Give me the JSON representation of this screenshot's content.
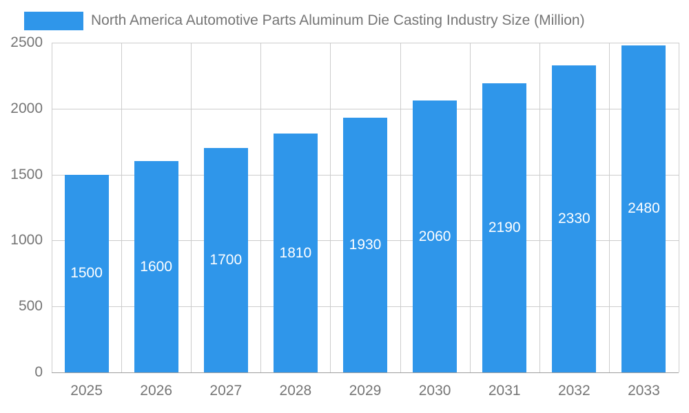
{
  "chart_data": {
    "type": "bar",
    "title": "North America Automotive Parts Aluminum Die Casting Industry Size (Million)",
    "categories": [
      "2025",
      "2026",
      "2027",
      "2028",
      "2029",
      "2030",
      "2031",
      "2032",
      "2033"
    ],
    "values": [
      1500,
      1600,
      1700,
      1810,
      1930,
      2060,
      2190,
      2330,
      2480
    ],
    "xlabel": "",
    "ylabel": "",
    "ylim": [
      0,
      2500
    ],
    "yticks": [
      0,
      500,
      1000,
      1500,
      2000,
      2500
    ],
    "grid": true,
    "legend_position": "top-left",
    "bar_color": "#2F96EA",
    "value_label_color": "#FFFFFF",
    "axis_label_color": "#757575",
    "gridline_color": "#CCCCCC",
    "baseline_color": "#9E9E9E",
    "background_color": "#FFFFFF"
  }
}
